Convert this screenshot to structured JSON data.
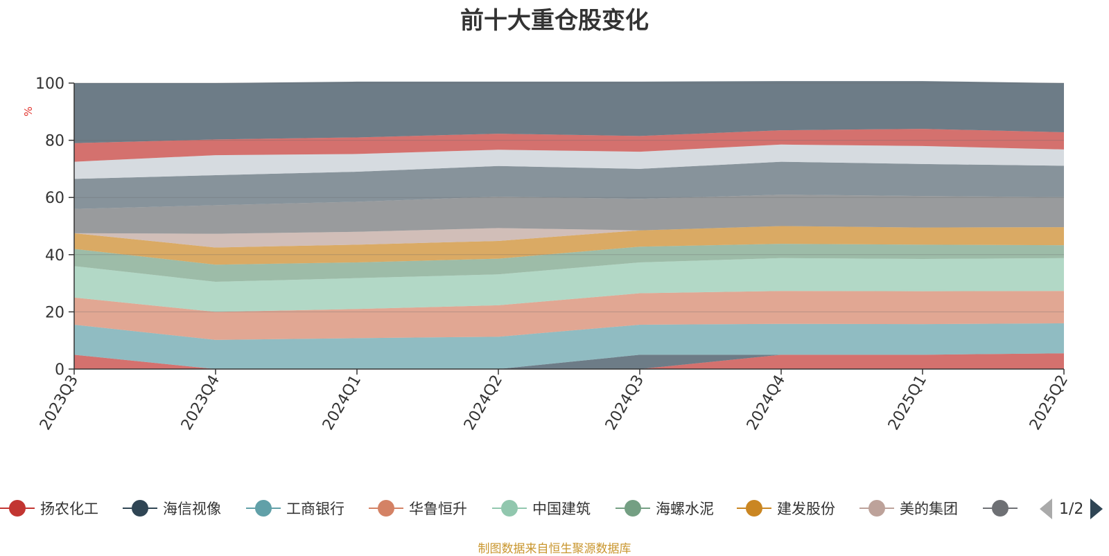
{
  "chart_data": {
    "type": "area",
    "stacked": true,
    "title": "前十大重仓股变化",
    "unit": "%",
    "ylim": [
      0,
      100
    ],
    "yticks": [
      "0",
      "20",
      "40",
      "60",
      "80",
      "100"
    ],
    "categories": [
      "2023Q3",
      "2023Q4",
      "2024Q1",
      "2024Q2",
      "2024Q3",
      "2024Q4",
      "2025Q1",
      "2025Q2"
    ],
    "series": [
      {
        "name": "扬农化工",
        "color": "#c23531",
        "values": [
          5,
          0,
          0,
          0,
          0,
          5,
          5,
          5.5
        ]
      },
      {
        "name": "海信视像",
        "color": "#2f4554",
        "values": [
          0,
          0,
          0,
          0,
          5,
          0,
          0,
          0
        ]
      },
      {
        "name": "工商银行",
        "color": "#61a0a8",
        "values": [
          10.5,
          10.2,
          10.8,
          11.3,
          10.5,
          10.8,
          10.7,
          10.5
        ]
      },
      {
        "name": "华鲁恒升",
        "color": "#d48265",
        "values": [
          9.5,
          9.8,
          10.2,
          11,
          11,
          11.5,
          11.5,
          11.3
        ]
      },
      {
        "name": "中国建筑",
        "color": "#91c7ae",
        "values": [
          11,
          10.5,
          10.8,
          10.8,
          10.8,
          11.5,
          11.3,
          11.5
        ]
      },
      {
        "name": "海螺水泥",
        "color": "#749f83",
        "values": [
          6,
          6,
          5.5,
          5.5,
          5.5,
          5,
          5,
          4.5
        ]
      },
      {
        "name": "建发股份",
        "color": "#ca8622",
        "values": [
          5.5,
          6,
          6.2,
          6.2,
          5.7,
          6.2,
          6,
          6.3
        ]
      },
      {
        "name": "美的集团",
        "color": "#bda29a",
        "values": [
          0,
          4.8,
          4.5,
          4.5,
          0,
          0,
          0,
          0
        ]
      },
      {
        "name": "",
        "color": "#6e7074",
        "values": [
          8.5,
          10,
          10.5,
          11,
          11,
          11,
          11,
          10.5
        ]
      },
      {
        "name": "",
        "color": "#546570",
        "values": [
          10.5,
          10.5,
          10.5,
          10.7,
          10.5,
          11.5,
          11.2,
          11
        ]
      },
      {
        "name": "",
        "color": "#c4ccd3",
        "values": [
          6,
          7,
          6.2,
          5.7,
          6,
          6,
          6.3,
          5.7
        ]
      },
      {
        "name": "",
        "color": "#c23531",
        "values": [
          6.5,
          5.5,
          5.8,
          5.6,
          5.5,
          5,
          6,
          6
        ]
      },
      {
        "name": "",
        "color": "#2f4554",
        "values": [
          21,
          19.7,
          19.5,
          18.2,
          19,
          17.2,
          16.7,
          17.2
        ]
      }
    ]
  },
  "legend": {
    "items": [
      {
        "label": "扬农化工",
        "color": "#c23531"
      },
      {
        "label": "海信视像",
        "color": "#2f4554"
      },
      {
        "label": "工商银行",
        "color": "#61a0a8"
      },
      {
        "label": "华鲁恒升",
        "color": "#d48265"
      },
      {
        "label": "中国建筑",
        "color": "#91c7ae"
      },
      {
        "label": "海螺水泥",
        "color": "#749f83"
      },
      {
        "label": "建发股份",
        "color": "#ca8622"
      },
      {
        "label": "美的集团",
        "color": "#bda29a"
      },
      {
        "label": "",
        "color": "#6e7074"
      }
    ],
    "page": "1/2"
  },
  "source": "制图数据来自恒生聚源数据库"
}
